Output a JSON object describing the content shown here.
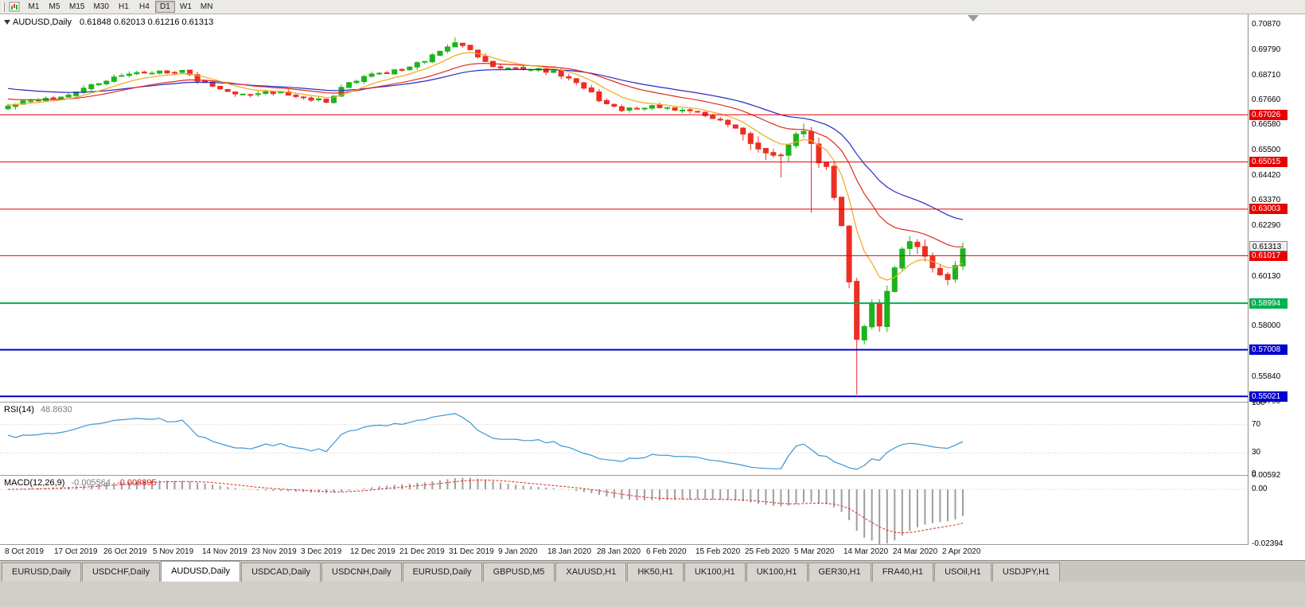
{
  "toolbar": {
    "timeframes": [
      "M1",
      "M5",
      "M15",
      "M30",
      "H1",
      "H4",
      "D1",
      "W1",
      "MN"
    ],
    "active_timeframe": "D1",
    "icon": "chart-periods-icon"
  },
  "chart": {
    "title_symbol": "AUDUSD,Daily",
    "title_ohlc": "0.61848 0.62013 0.61216 0.61313",
    "current_price": "0.61313",
    "price_axis_ticks": [
      "0.70870",
      "0.69790",
      "0.68710",
      "0.67660",
      "0.66580",
      "0.65500",
      "0.64420",
      "0.63370",
      "0.62290",
      "0.60130",
      "0.58000",
      "0.55840",
      "0.54790"
    ],
    "hlines": [
      {
        "value": 0.67026,
        "label": "0.67026",
        "color": "#e60000",
        "width": 1
      },
      {
        "value": 0.65015,
        "label": "0.65015",
        "color": "#e60000",
        "width": 1
      },
      {
        "value": 0.63003,
        "label": "0.63003",
        "color": "#e60000",
        "width": 1
      },
      {
        "value": 0.61017,
        "label": "0.61017",
        "color": "#e60000",
        "width": 1
      },
      {
        "value": 0.58994,
        "label": "0.58994",
        "color": "#00b050",
        "width": 2
      },
      {
        "value": 0.57008,
        "label": "0.57008",
        "color": "#0000cc",
        "width": 2
      },
      {
        "value": 0.55021,
        "label": "0.55021",
        "color": "#0000cc",
        "width": 2
      }
    ],
    "date_axis": [
      "8 Oct 2019",
      "17 Oct 2019",
      "26 Oct 2019",
      "5 Nov 2019",
      "14 Nov 2019",
      "23 Nov 2019",
      "3 Dec 2019",
      "12 Dec 2019",
      "21 Dec 2019",
      "31 Dec 2019",
      "9 Jan 2020",
      "18 Jan 2020",
      "28 Jan 2020",
      "6 Feb 2020",
      "15 Feb 2020",
      "25 Feb 2020",
      "5 Mar 2020",
      "14 Mar 2020",
      "24 Mar 2020",
      "2 Apr 2020"
    ]
  },
  "rsi": {
    "title": "RSI(14)",
    "value": "48.8630",
    "axis_ticks": [
      "100",
      "70",
      "30",
      "0"
    ],
    "levels": [
      70,
      30
    ],
    "line_color": "#3c96d2"
  },
  "macd": {
    "title": "MACD(12,26,9)",
    "value_main": "-0.005564",
    "value_signal": "-0.008895",
    "axis_ticks": [
      "0.00592",
      "0.00",
      "-0.02394"
    ],
    "scale_max": 0.00592,
    "scale_min": -0.02394,
    "histogram_color": "#9e9e9e",
    "signal_color": "#e02b20"
  },
  "tabs": {
    "items": [
      "EURUSD,Daily",
      "USDCHF,Daily",
      "AUDUSD,Daily",
      "USDCAD,Daily",
      "USDCNH,Daily",
      "EURUSD,Daily",
      "GBPUSD,M5",
      "XAUUSD,H1",
      "HK50,H1",
      "UK100,H1",
      "UK100,H1",
      "GER30,H1",
      "FRA40,H1",
      "USOil,H1",
      "USDJPY,H1"
    ],
    "active_index": 2
  },
  "chart_data": {
    "type": "candlestick",
    "symbol": "AUDUSD",
    "timeframe": "Daily",
    "n_candles": 127,
    "price_max": 0.7131,
    "price_min": 0.5479,
    "up_color": "#1db31d",
    "down_color": "#ed2e24",
    "close_anchors": [
      [
        0,
        0.674
      ],
      [
        3,
        0.6762
      ],
      [
        6,
        0.6772
      ],
      [
        9,
        0.68
      ],
      [
        13,
        0.6846
      ],
      [
        16,
        0.6876
      ],
      [
        19,
        0.688
      ],
      [
        23,
        0.6892
      ],
      [
        25,
        0.6846
      ],
      [
        26,
        0.684
      ],
      [
        29,
        0.6802
      ],
      [
        32,
        0.6786
      ],
      [
        36,
        0.68
      ],
      [
        39,
        0.6776
      ],
      [
        42,
        0.6756
      ],
      [
        45,
        0.684
      ],
      [
        49,
        0.688
      ],
      [
        52,
        0.6892
      ],
      [
        55,
        0.693
      ],
      [
        58,
        0.6992
      ],
      [
        59,
        0.701
      ],
      [
        61,
        0.698
      ],
      [
        63,
        0.693
      ],
      [
        65,
        0.6902
      ],
      [
        68,
        0.6896
      ],
      [
        72,
        0.689
      ],
      [
        75,
        0.684
      ],
      [
        77,
        0.68
      ],
      [
        78,
        0.6762
      ],
      [
        81,
        0.672
      ],
      [
        85,
        0.6742
      ],
      [
        88,
        0.6722
      ],
      [
        91,
        0.6716
      ],
      [
        94,
        0.668
      ],
      [
        97,
        0.662
      ],
      [
        98,
        0.658
      ],
      [
        100,
        0.654
      ],
      [
        102,
        0.653
      ],
      [
        104,
        0.662
      ],
      [
        105,
        0.6632
      ],
      [
        106,
        0.658
      ],
      [
        107,
        0.6498
      ],
      [
        108,
        0.6482
      ],
      [
        109,
        0.635
      ],
      [
        110,
        0.623
      ],
      [
        111,
        0.599
      ],
      [
        112,
        0.5745
      ],
      [
        113,
        0.58
      ],
      [
        114,
        0.59
      ],
      [
        115,
        0.5802
      ],
      [
        116,
        0.595
      ],
      [
        117,
        0.605
      ],
      [
        118,
        0.613
      ],
      [
        119,
        0.6162
      ],
      [
        120,
        0.614
      ],
      [
        121,
        0.61
      ],
      [
        122,
        0.605
      ],
      [
        123,
        0.602
      ],
      [
        124,
        0.6
      ],
      [
        125,
        0.606
      ],
      [
        126,
        0.61313
      ]
    ],
    "wick_overrides": {
      "59": {
        "high": 0.7032
      },
      "102": {
        "low": 0.6435
      },
      "105": {
        "high": 0.6665
      },
      "106": {
        "low": 0.6285
      },
      "112": {
        "low": 0.551
      },
      "124": {
        "low": 0.5975
      }
    },
    "ma_lines": [
      {
        "name": "ma-slow",
        "period": 34,
        "seed": 0.6815,
        "color": "#2929c8"
      },
      {
        "name": "ma-medium",
        "period": 20,
        "seed": 0.677,
        "color": "#e02b20"
      },
      {
        "name": "ma-fast",
        "period": 8,
        "seed": 0.6745,
        "color": "#f2a71b"
      }
    ]
  }
}
